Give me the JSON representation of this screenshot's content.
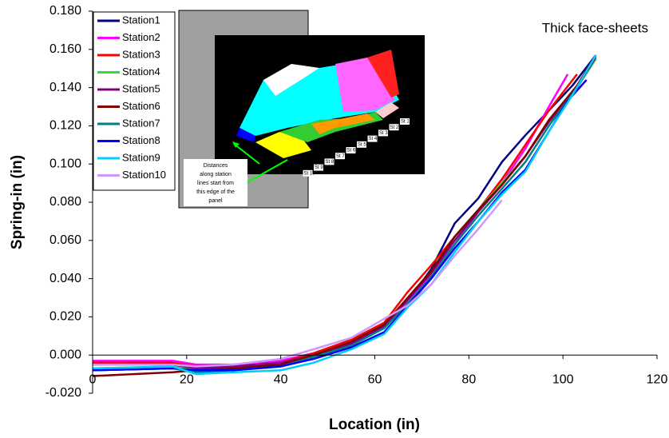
{
  "chart_data": {
    "type": "line",
    "x_label": "Location (in)",
    "y_label": "Spring-in (in)",
    "annotation": "Thick face-sheets",
    "xlim": [
      0,
      120
    ],
    "xticks": [
      0,
      20,
      40,
      60,
      80,
      100,
      120
    ],
    "ylim": [
      -0.02,
      0.18
    ],
    "yticks": [
      {
        "value": -0.02,
        "label": "-0.020"
      },
      {
        "value": 0,
        "label": "0.000"
      },
      {
        "value": 0.02,
        "label": "0.020"
      },
      {
        "value": 0.04,
        "label": "0.040"
      },
      {
        "value": 0.06,
        "label": "0.060"
      },
      {
        "value": 0.08,
        "label": "0.080"
      },
      {
        "value": 0.1,
        "label": "0.100"
      },
      {
        "value": 0.12,
        "label": "0.120"
      },
      {
        "value": 0.14,
        "label": "0.140"
      },
      {
        "value": 0.16,
        "label": "0.160"
      },
      {
        "value": 0.18,
        "label": "0.180"
      }
    ],
    "grid": false,
    "legend": "upper-left",
    "series": [
      {
        "name": "Station1",
        "color": "#000080",
        "x": [
          0,
          17,
          22,
          30,
          40,
          47,
          55,
          62,
          67,
          72,
          77,
          82,
          87,
          92,
          97,
          102,
          107
        ],
        "values": [
          -0.008,
          -0.007,
          -0.006,
          -0.005,
          -0.004,
          0.0,
          0.006,
          0.015,
          0.028,
          0.045,
          0.069,
          0.082,
          0.101,
          0.115,
          0.128,
          0.141,
          0.157
        ]
      },
      {
        "name": "Station2",
        "color": "#ff00ff",
        "x": [
          0,
          17,
          22,
          30,
          40,
          47,
          55,
          62,
          67,
          72,
          77,
          82,
          87,
          92,
          97,
          101
        ],
        "values": [
          -0.003,
          -0.003,
          -0.005,
          -0.005,
          -0.003,
          0.001,
          0.007,
          0.016,
          0.028,
          0.042,
          0.058,
          0.075,
          0.09,
          0.108,
          0.13,
          0.147
        ]
      },
      {
        "name": "Station3",
        "color": "#ff0000",
        "x": [
          0,
          17,
          22,
          30,
          40,
          47,
          55,
          62,
          67,
          72,
          77,
          82,
          87,
          92,
          97,
          103
        ],
        "values": [
          -0.004,
          -0.004,
          -0.006,
          -0.006,
          -0.004,
          0.001,
          0.008,
          0.017,
          0.033,
          0.047,
          0.062,
          0.076,
          0.092,
          0.11,
          0.128,
          0.147
        ]
      },
      {
        "name": "Station4",
        "color": "#33dd33",
        "x": [
          0,
          17,
          22,
          30,
          40,
          47,
          55,
          62,
          67,
          72,
          77,
          82,
          87,
          92,
          97,
          103,
          107
        ],
        "values": [
          -0.007,
          -0.006,
          -0.008,
          -0.007,
          -0.005,
          0.0,
          0.007,
          0.016,
          0.029,
          0.044,
          0.062,
          0.076,
          0.09,
          0.104,
          0.122,
          0.14,
          0.155
        ]
      },
      {
        "name": "Station5",
        "color": "#800080",
        "x": [
          0,
          17,
          22,
          30,
          40,
          47,
          55,
          62,
          67,
          72,
          77,
          82,
          87,
          92,
          97,
          103,
          107
        ],
        "values": [
          -0.005,
          -0.005,
          -0.007,
          -0.006,
          -0.004,
          0.0,
          0.006,
          0.015,
          0.029,
          0.043,
          0.06,
          0.075,
          0.089,
          0.104,
          0.122,
          0.14,
          0.156
        ]
      },
      {
        "name": "Station6",
        "color": "#800000",
        "x": [
          0,
          17,
          22,
          30,
          40,
          47,
          55,
          62,
          67,
          72,
          77,
          82,
          87,
          92,
          97,
          103,
          107
        ],
        "values": [
          -0.011,
          -0.009,
          -0.008,
          -0.007,
          -0.005,
          0.0,
          0.007,
          0.016,
          0.03,
          0.044,
          0.062,
          0.076,
          0.089,
          0.104,
          0.123,
          0.141,
          0.157
        ]
      },
      {
        "name": "Station7",
        "color": "#008080",
        "x": [
          0,
          17,
          22,
          30,
          40,
          47,
          55,
          62,
          67,
          72,
          77,
          82,
          87,
          92,
          97,
          103,
          107
        ],
        "values": [
          -0.008,
          -0.007,
          -0.009,
          -0.008,
          -0.006,
          -0.001,
          0.005,
          0.014,
          0.027,
          0.041,
          0.058,
          0.073,
          0.087,
          0.101,
          0.12,
          0.14,
          0.157
        ]
      },
      {
        "name": "Station8",
        "color": "#0000ff",
        "x": [
          0,
          17,
          22,
          30,
          40,
          47,
          55,
          62,
          67,
          72,
          77,
          82,
          87,
          92,
          97,
          101,
          105
        ],
        "values": [
          -0.008,
          -0.007,
          -0.008,
          -0.008,
          -0.006,
          -0.002,
          0.004,
          0.012,
          0.026,
          0.04,
          0.056,
          0.07,
          0.085,
          0.097,
          0.117,
          0.133,
          0.144
        ]
      },
      {
        "name": "Station9",
        "color": "#00ccff",
        "x": [
          0,
          17,
          22,
          30,
          40,
          47,
          55,
          62,
          67,
          72,
          77,
          82,
          87,
          92,
          97,
          102,
          107
        ],
        "values": [
          -0.007,
          -0.006,
          -0.01,
          -0.009,
          -0.008,
          -0.004,
          0.003,
          0.011,
          0.025,
          0.037,
          0.054,
          0.07,
          0.084,
          0.096,
          0.117,
          0.136,
          0.157
        ]
      },
      {
        "name": "Station10",
        "color": "#cc99ff",
        "x": [
          0,
          17,
          22,
          30,
          40,
          47,
          55,
          62,
          67,
          72,
          77,
          82,
          87
        ],
        "values": [
          -0.005,
          -0.005,
          -0.006,
          -0.005,
          -0.002,
          0.003,
          0.009,
          0.019,
          0.026,
          0.037,
          0.052,
          0.066,
          0.081
        ]
      }
    ]
  },
  "inset": {
    "note": [
      "Distances",
      "along station",
      "lines start from",
      "this edge of the",
      "panel"
    ],
    "stations": [
      "St 1",
      "St 2",
      "St 3",
      "St 4",
      "St 5",
      "St 6",
      "St 7",
      "St 8",
      "St 9",
      "St 10"
    ]
  }
}
